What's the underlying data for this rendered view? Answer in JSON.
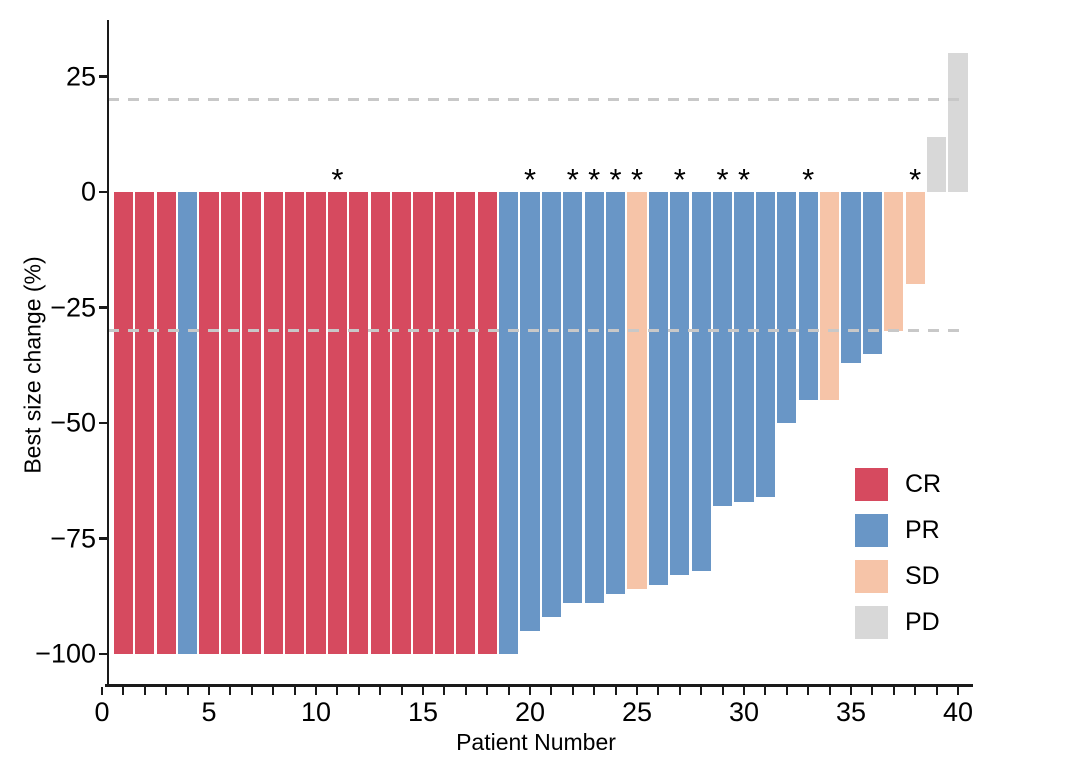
{
  "chart_data": {
    "type": "bar",
    "title": "",
    "xlabel": "Patient Number",
    "ylabel": "Best size change (%)",
    "x_ticks_labeled": [
      0,
      5,
      10,
      15,
      20,
      25,
      30,
      35,
      40
    ],
    "x_minor_tick_every": 1,
    "xlim": [
      0,
      40.7
    ],
    "y_ticks": [
      25,
      0,
      -25,
      -50,
      -75,
      -100
    ],
    "ylim": [
      -107,
      33
    ],
    "grid": false,
    "legend_position": "inside-right",
    "reference_lines": [
      {
        "y": 20,
        "style": "dashed",
        "color": "#c8c8c8"
      },
      {
        "y": -30,
        "style": "dashed",
        "color": "#c8c8c8"
      }
    ],
    "star_marker": "*",
    "responses": [
      {
        "code": "CR",
        "color": "#d64a5f"
      },
      {
        "code": "PR",
        "color": "#6996c6"
      },
      {
        "code": "SD",
        "color": "#f6c4a8"
      },
      {
        "code": "PD",
        "color": "#d8d8d8"
      }
    ],
    "bars": [
      {
        "patient": 1,
        "value": -100,
        "response": "CR",
        "star": false
      },
      {
        "patient": 2,
        "value": -100,
        "response": "CR",
        "star": false
      },
      {
        "patient": 3,
        "value": -100,
        "response": "CR",
        "star": false
      },
      {
        "patient": 4,
        "value": -100,
        "response": "PR",
        "star": false
      },
      {
        "patient": 5,
        "value": -100,
        "response": "CR",
        "star": false
      },
      {
        "patient": 6,
        "value": -100,
        "response": "CR",
        "star": false
      },
      {
        "patient": 7,
        "value": -100,
        "response": "CR",
        "star": false
      },
      {
        "patient": 8,
        "value": -100,
        "response": "CR",
        "star": false
      },
      {
        "patient": 9,
        "value": -100,
        "response": "CR",
        "star": false
      },
      {
        "patient": 10,
        "value": -100,
        "response": "CR",
        "star": false
      },
      {
        "patient": 11,
        "value": -100,
        "response": "CR",
        "star": true
      },
      {
        "patient": 12,
        "value": -100,
        "response": "CR",
        "star": false
      },
      {
        "patient": 13,
        "value": -100,
        "response": "CR",
        "star": false
      },
      {
        "patient": 14,
        "value": -100,
        "response": "CR",
        "star": false
      },
      {
        "patient": 15,
        "value": -100,
        "response": "CR",
        "star": false
      },
      {
        "patient": 16,
        "value": -100,
        "response": "CR",
        "star": false
      },
      {
        "patient": 17,
        "value": -100,
        "response": "CR",
        "star": false
      },
      {
        "patient": 18,
        "value": -100,
        "response": "CR",
        "star": false
      },
      {
        "patient": 19,
        "value": -100,
        "response": "PR",
        "star": false
      },
      {
        "patient": 20,
        "value": -95,
        "response": "PR",
        "star": true
      },
      {
        "patient": 21,
        "value": -92,
        "response": "PR",
        "star": false
      },
      {
        "patient": 22,
        "value": -89,
        "response": "PR",
        "star": true
      },
      {
        "patient": 23,
        "value": -89,
        "response": "PR",
        "star": true
      },
      {
        "patient": 24,
        "value": -87,
        "response": "PR",
        "star": true
      },
      {
        "patient": 25,
        "value": -86,
        "response": "SD",
        "star": true
      },
      {
        "patient": 26,
        "value": -85,
        "response": "PR",
        "star": false
      },
      {
        "patient": 27,
        "value": -83,
        "response": "PR",
        "star": true
      },
      {
        "patient": 28,
        "value": -82,
        "response": "PR",
        "star": false
      },
      {
        "patient": 29,
        "value": -68,
        "response": "PR",
        "star": true
      },
      {
        "patient": 30,
        "value": -67,
        "response": "PR",
        "star": true
      },
      {
        "patient": 31,
        "value": -66,
        "response": "PR",
        "star": false
      },
      {
        "patient": 32,
        "value": -50,
        "response": "PR",
        "star": false
      },
      {
        "patient": 33,
        "value": -45,
        "response": "PR",
        "star": true
      },
      {
        "patient": 34,
        "value": -45,
        "response": "SD",
        "star": false
      },
      {
        "patient": 35,
        "value": -37,
        "response": "PR",
        "star": false
      },
      {
        "patient": 36,
        "value": -35,
        "response": "PR",
        "star": false
      },
      {
        "patient": 37,
        "value": -30,
        "response": "SD",
        "star": false
      },
      {
        "patient": 38,
        "value": -20,
        "response": "SD",
        "star": true
      },
      {
        "patient": 39,
        "value": 12,
        "response": "PD",
        "star": false
      },
      {
        "patient": 40,
        "value": 30,
        "response": "PD",
        "star": false
      }
    ]
  }
}
